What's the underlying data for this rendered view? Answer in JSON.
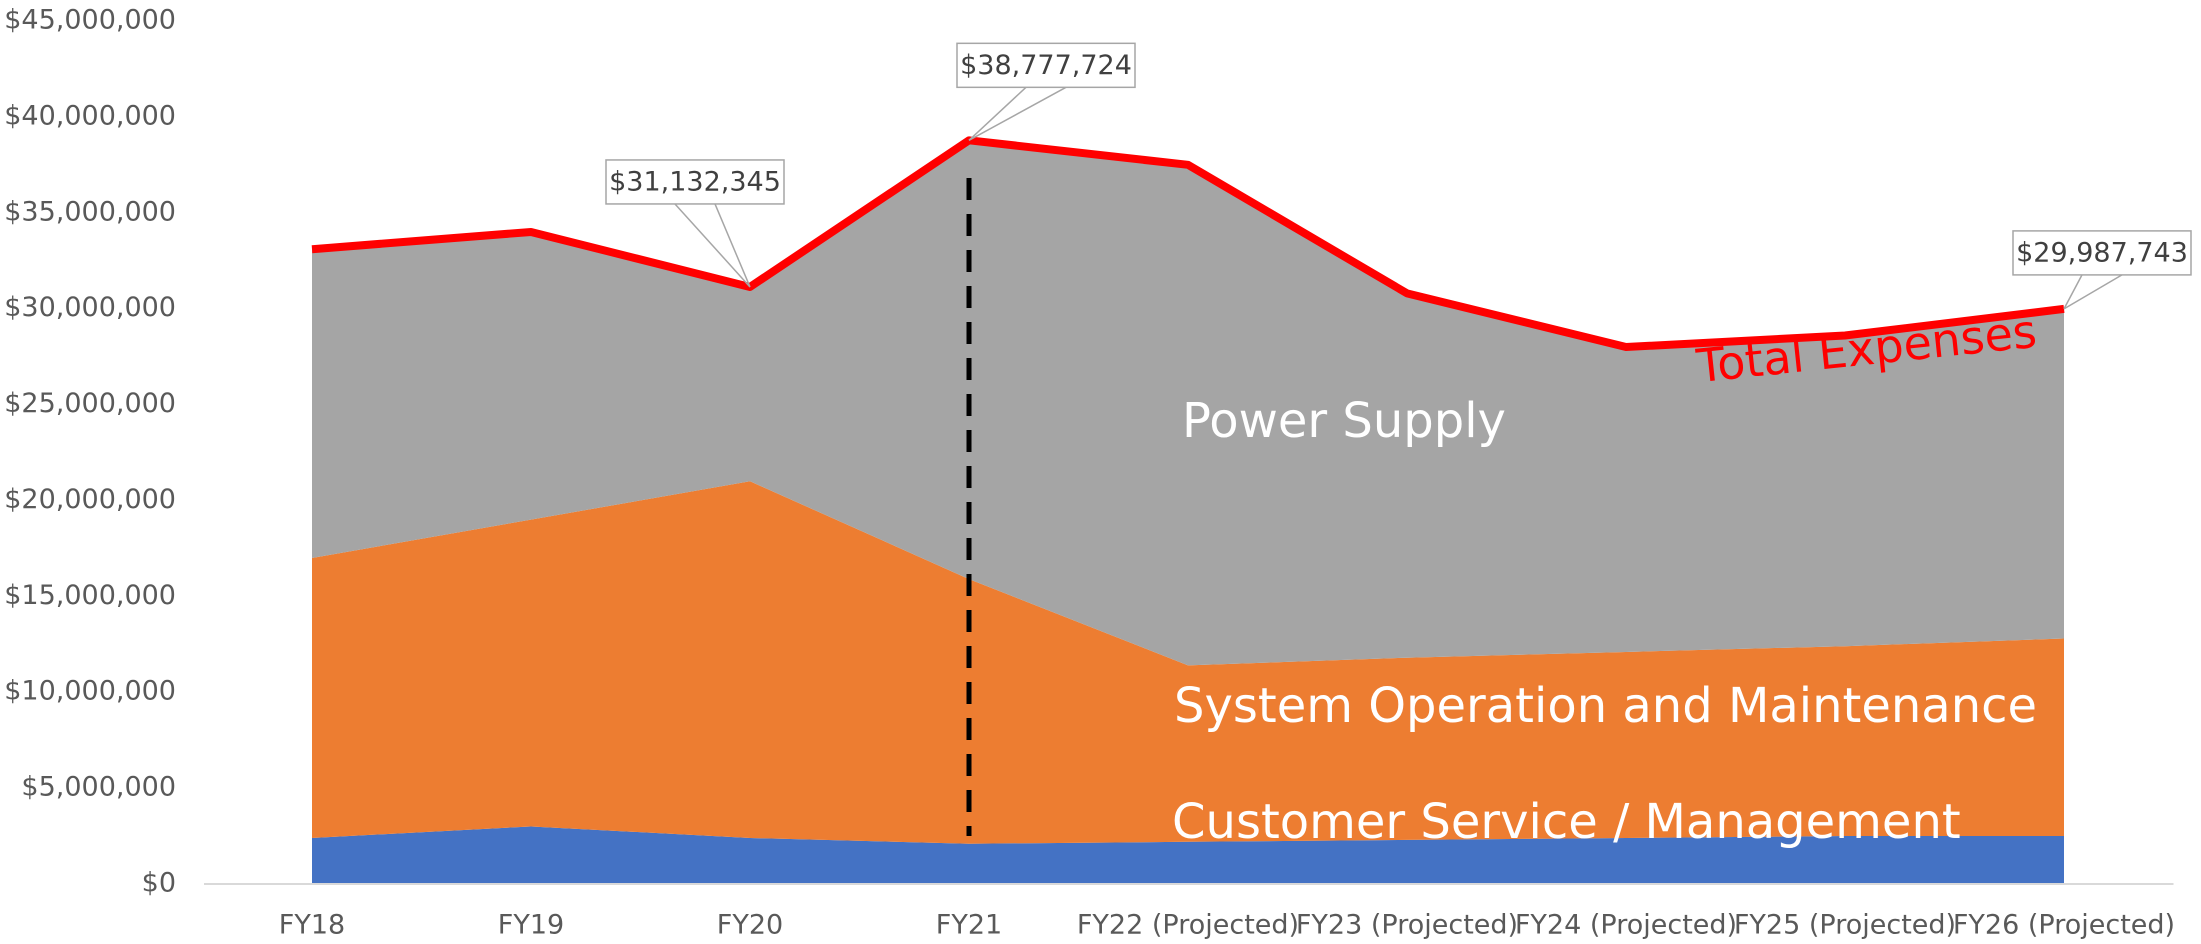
{
  "chart_data": {
    "type": "stacked_area",
    "categories": [
      "FY18",
      "FY19",
      "FY20",
      "FY21",
      "FY22 (Projected)",
      "FY23 (Projected)",
      "FY24 (Projected)",
      "FY25 (Projected)",
      "FY26 (Projected)"
    ],
    "series": [
      {
        "name": "Customer Service / Management",
        "color": "#4472c4",
        "values": [
          2400000,
          3000000,
          2400000,
          2100000,
          2200000,
          2300000,
          2400000,
          2500000,
          2500000
        ]
      },
      {
        "name": "System Operation and Maintenance",
        "color": "#ed7d31",
        "values": [
          14600000,
          16000000,
          18600000,
          13800000,
          9200000,
          9500000,
          9700000,
          9900000,
          10300000
        ]
      },
      {
        "name": "Power Supply",
        "color": "#a5a5a5",
        "values": [
          16100000,
          15000000,
          10132345,
          22877724,
          26100000,
          19000000,
          15900000,
          16200000,
          17187743
        ]
      },
      {
        "name": "Total Expenses",
        "color": "#ff0000",
        "type": "line",
        "values": [
          33100000,
          34000000,
          31132345,
          38777724,
          37500000,
          30800000,
          28000000,
          28600000,
          29987743
        ],
        "value_labels": [
          null,
          null,
          "$31,132,345",
          "$38,777,724",
          null,
          null,
          null,
          null,
          "$29,987,743"
        ]
      }
    ],
    "ylim": [
      0,
      45000000
    ],
    "yticks": [
      {
        "value": 0,
        "label": "$0"
      },
      {
        "value": 5000000,
        "label": "$5,000,000"
      },
      {
        "value": 10000000,
        "label": "$10,000,000"
      },
      {
        "value": 15000000,
        "label": "$15,000,000"
      },
      {
        "value": 20000000,
        "label": "$20,000,000"
      },
      {
        "value": 25000000,
        "label": "$25,000,000"
      },
      {
        "value": 30000000,
        "label": "$30,000,000"
      },
      {
        "value": 35000000,
        "label": "$35,000,000"
      },
      {
        "value": 40000000,
        "label": "$40,000,000"
      },
      {
        "value": 45000000,
        "label": "$45,000,000"
      }
    ]
  }
}
